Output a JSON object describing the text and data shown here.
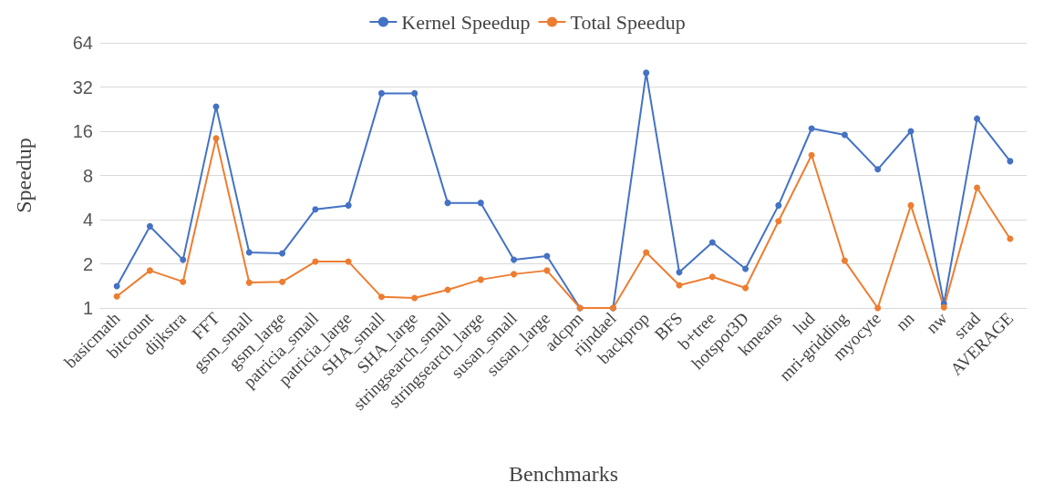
{
  "chart_data": {
    "type": "line",
    "xlabel": "Benchmarks",
    "ylabel": "Speedup",
    "categories": [
      "basicmath",
      "bitcount",
      "dijkstra",
      "FFT",
      "gsm_small",
      "gsm_large",
      "patricia_small",
      "patricia_large",
      "SHA_small",
      "SHA_large",
      "stringsearch_small",
      "stringsearch_large",
      "susan_small",
      "susan_large",
      "adcpm",
      "rijndael",
      "backprop",
      "BFS",
      "b+tree",
      "hotspot3D",
      "kmeans",
      "lud",
      "mri-gridding",
      "myocyte",
      "nn",
      "nw",
      "srad",
      "AVERAGE"
    ],
    "series": [
      {
        "name": "Kernel Speedup",
        "color": "#4472c4",
        "values": [
          1.41,
          3.6,
          2.13,
          23.5,
          2.39,
          2.36,
          4.7,
          5.0,
          29,
          29,
          5.2,
          5.2,
          2.13,
          2.26,
          1,
          1,
          40,
          1.75,
          2.8,
          1.85,
          5.0,
          16.7,
          15.1,
          8.8,
          16,
          1.07,
          19.5,
          10
        ]
      },
      {
        "name": "Total Speedup",
        "color": "#ed7d31",
        "values": [
          1.2,
          1.8,
          1.51,
          14.3,
          1.49,
          1.51,
          2.07,
          2.07,
          1.19,
          1.17,
          1.33,
          1.56,
          1.7,
          1.8,
          1,
          1,
          2.39,
          1.43,
          1.63,
          1.37,
          3.9,
          11,
          2.1,
          1,
          5,
          1.01,
          6.6,
          2.96
        ]
      }
    ],
    "log": "y",
    "ylim": [
      1,
      64
    ],
    "yticks": [
      1,
      2,
      4,
      8,
      16,
      32,
      64
    ],
    "grid": "y",
    "legend": "top",
    "marker": "circle",
    "line_style": "solid"
  }
}
